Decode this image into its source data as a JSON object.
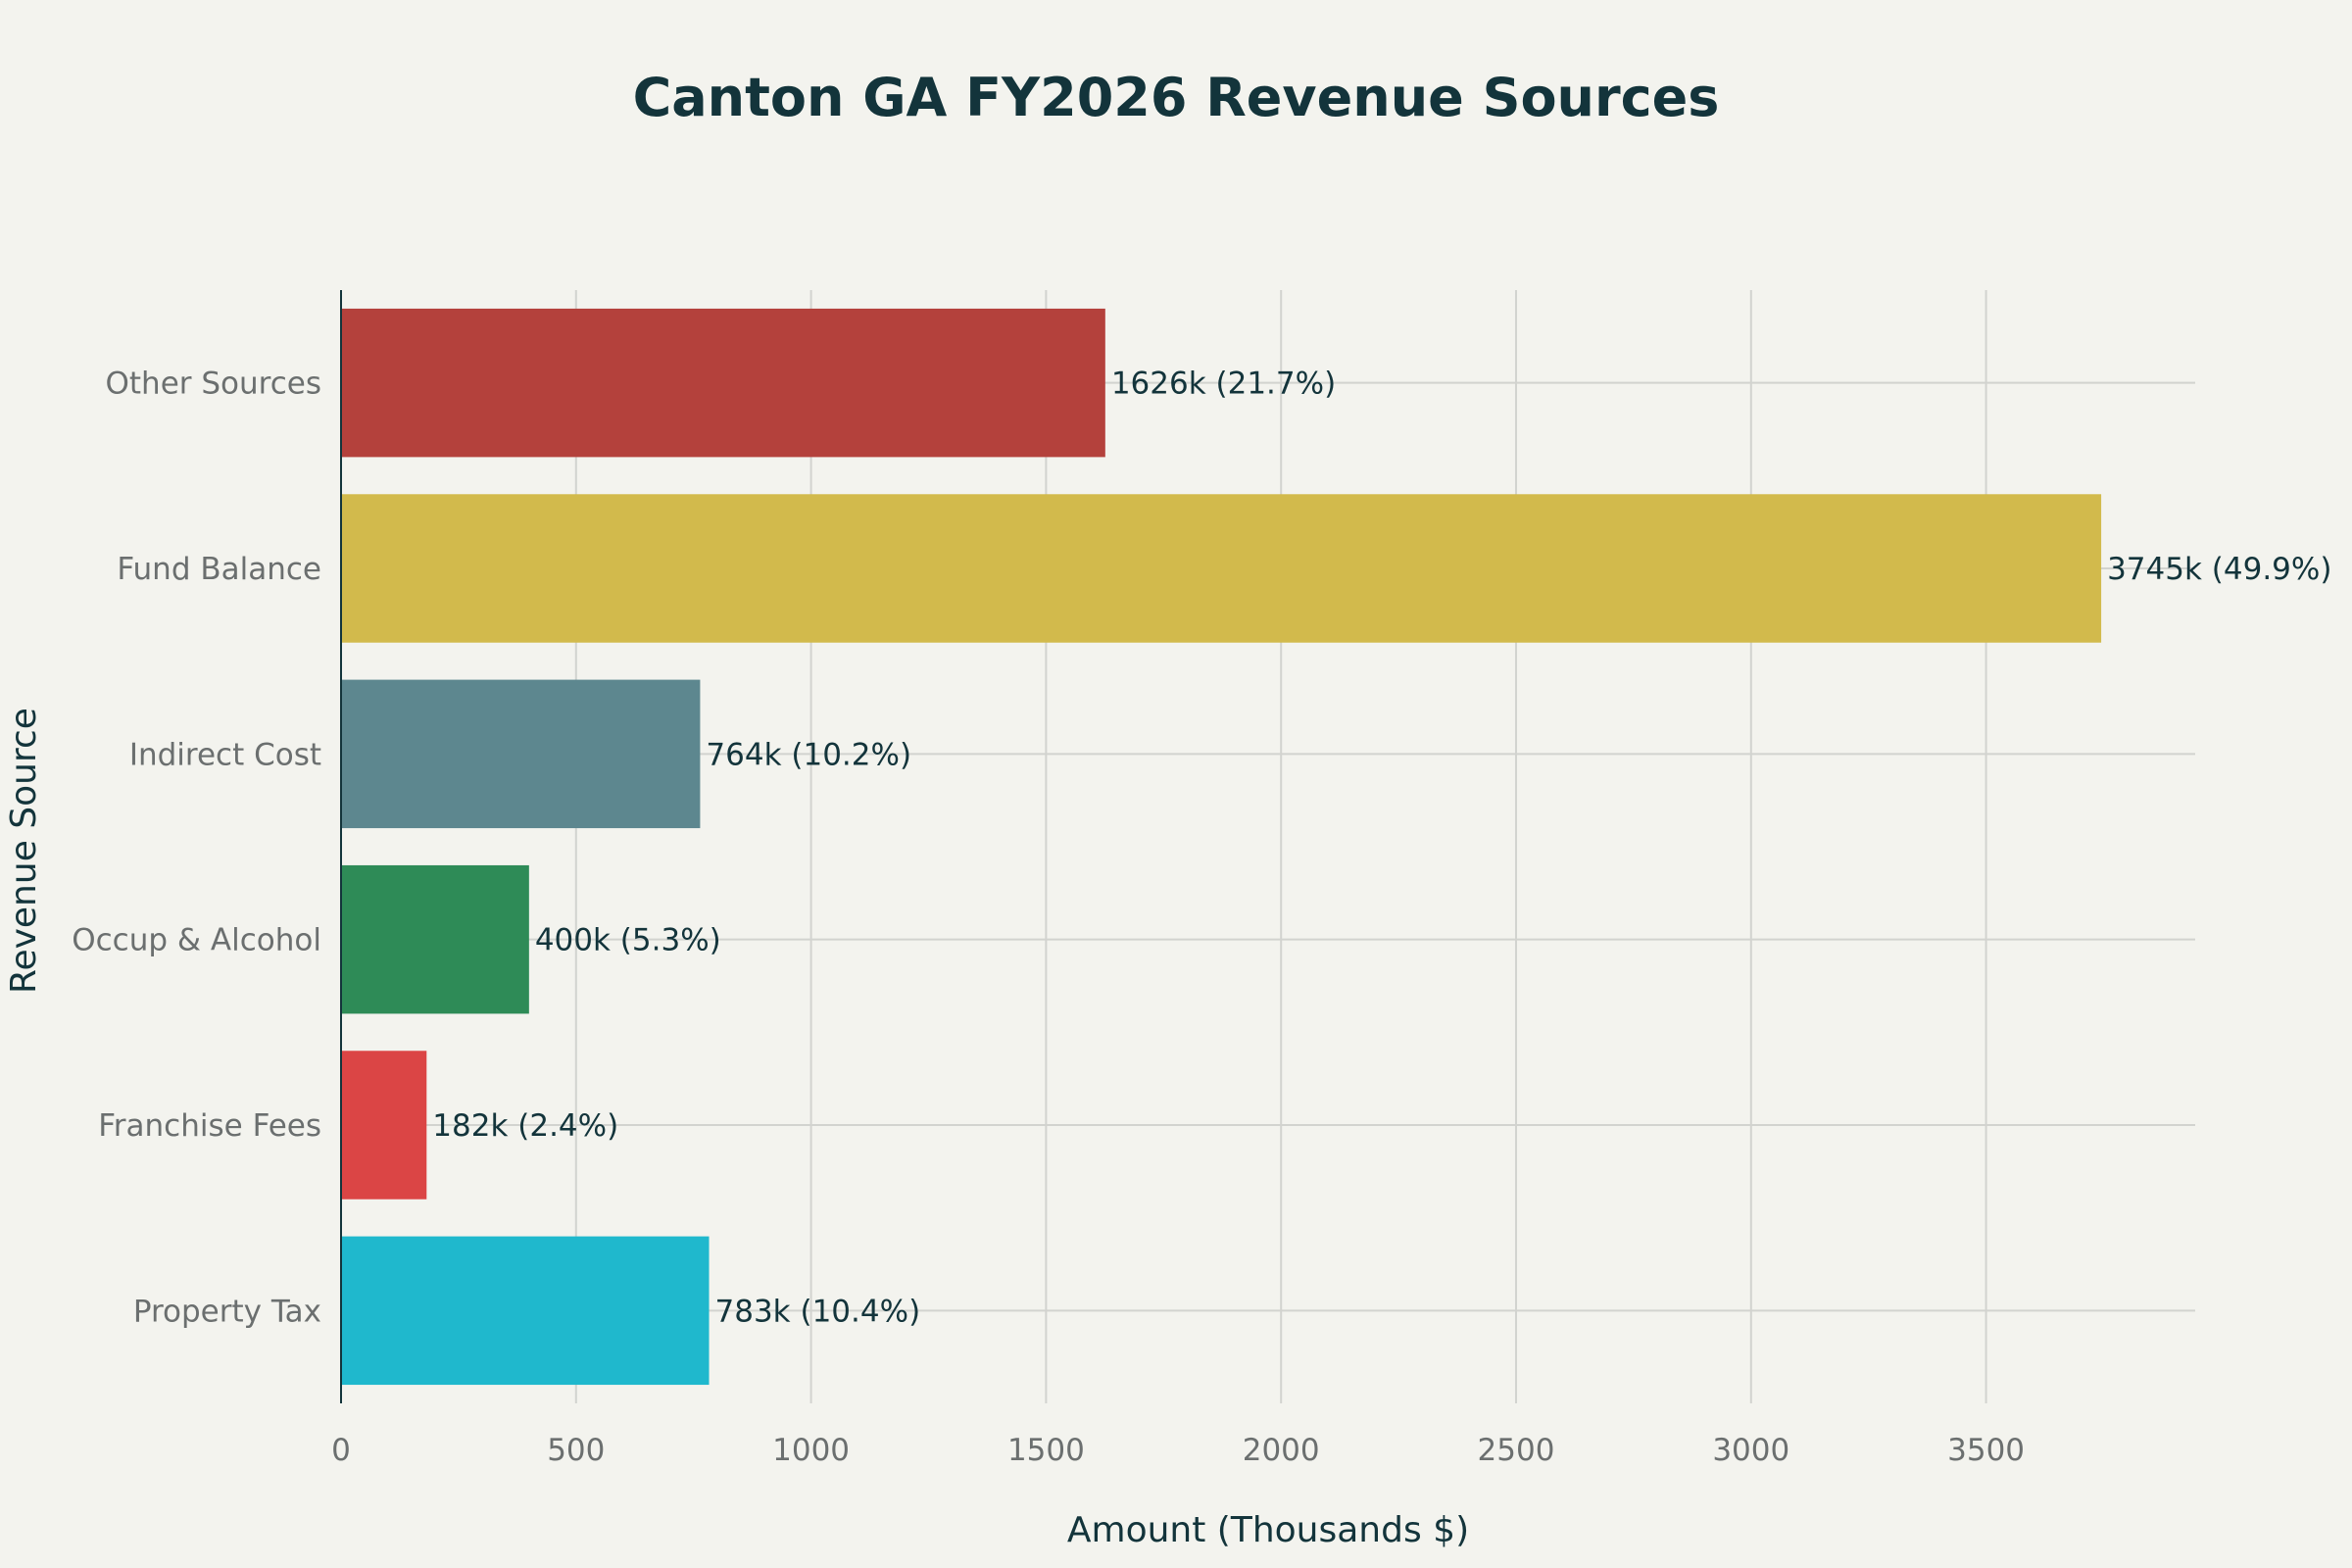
{
  "chart_data": {
    "type": "bar",
    "orientation": "horizontal",
    "title": "Canton GA FY2026 Revenue Sources",
    "xlabel": "Amount (Thousands $)",
    "ylabel": "Revenue Source",
    "xlim": [
      0,
      3945
    ],
    "x_ticks": [
      0,
      500,
      1000,
      1500,
      2000,
      2500,
      3000,
      3500
    ],
    "grid": true,
    "categories": [
      "Property Tax",
      "Franchise Fees",
      "Occup & Alcohol",
      "Indirect Cost",
      "Fund Balance",
      "Other Sources"
    ],
    "values": [
      783,
      182,
      400,
      764,
      3745,
      1626
    ],
    "data_labels": [
      "783k (10.4%)",
      "182k (2.4%)",
      "400k (5.3%)",
      "764k (10.2%)",
      "3745k (49.9%)",
      "1626k (21.7%)"
    ],
    "colors": [
      "#1fb8cd",
      "#db4545",
      "#2e8b57",
      "#5d878f",
      "#d2ba4c",
      "#b4413c"
    ]
  }
}
